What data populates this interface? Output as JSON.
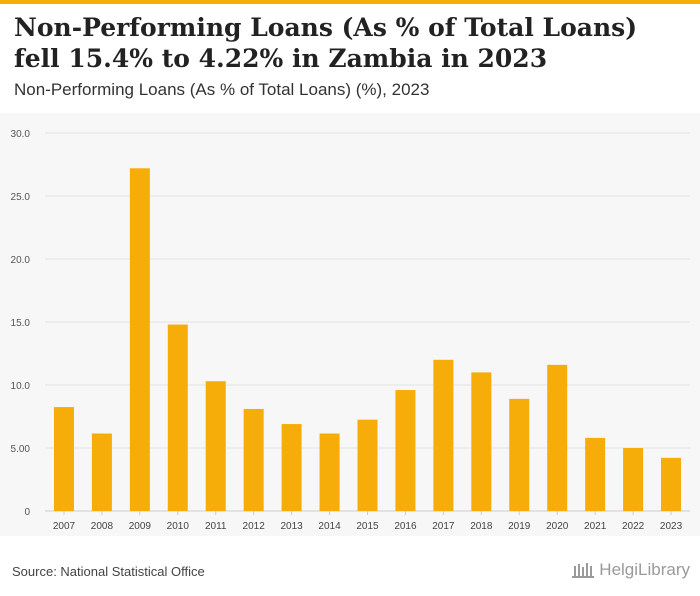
{
  "header": {
    "title": "Non-Performing Loans (As % of Total Loans) fell 15.4% to 4.22% in Zambia in 2023",
    "subtitle": "Non-Performing Loans (As % of Total Loans) (%), 2023"
  },
  "footer": {
    "source": "Source: National Statistical Office",
    "logo_text": "HelgiLibrary"
  },
  "colors": {
    "bar": "#f6ad0a",
    "accent": "#f6ad0a",
    "grid": "#e3e3e3"
  },
  "chart_data": {
    "type": "bar",
    "title": "Non-Performing Loans (As % of Total Loans) fell 15.4% to 4.22% in Zambia in 2023",
    "subtitle": "Non-Performing Loans (As % of Total Loans) (%), 2023",
    "xlabel": "",
    "ylabel": "",
    "ylim": [
      0,
      30
    ],
    "yticks": [
      0,
      5,
      10,
      15,
      20,
      25,
      30
    ],
    "ytick_labels": [
      "0",
      "5.00",
      "10.0",
      "15.0",
      "20.0",
      "25.0",
      "30.0"
    ],
    "grid": true,
    "categories": [
      "2007",
      "2008",
      "2009",
      "2010",
      "2011",
      "2012",
      "2013",
      "2014",
      "2015",
      "2016",
      "2017",
      "2018",
      "2019",
      "2020",
      "2021",
      "2022",
      "2023"
    ],
    "values": [
      8.25,
      6.15,
      27.2,
      14.8,
      10.3,
      8.1,
      6.9,
      6.15,
      7.25,
      9.6,
      12.0,
      11.0,
      8.9,
      11.6,
      5.8,
      5.0,
      4.22
    ]
  }
}
